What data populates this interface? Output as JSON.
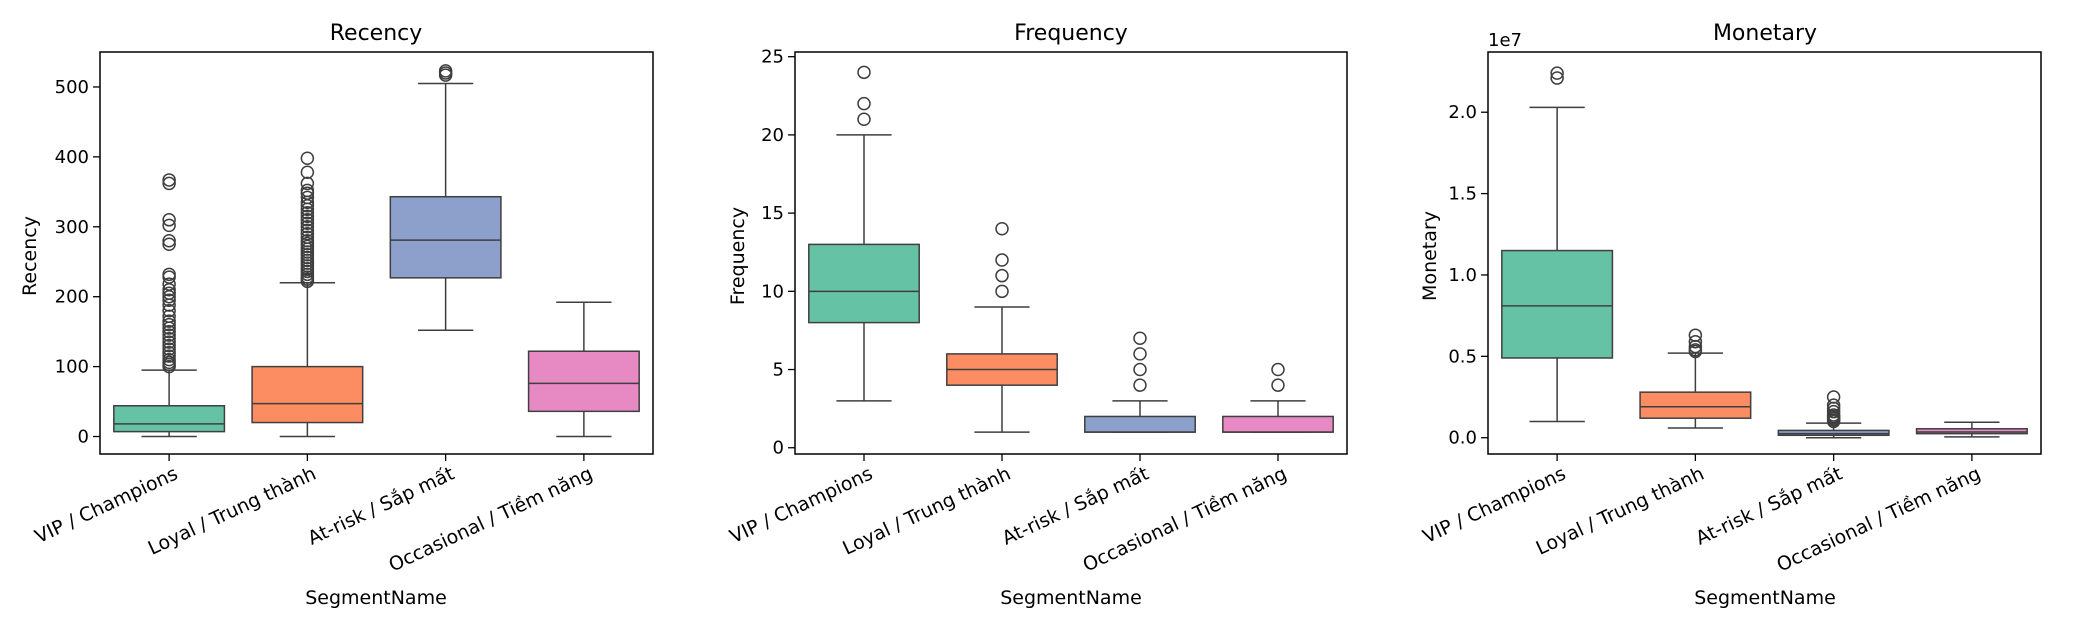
{
  "palette": [
    "#66c2a5",
    "#fc8d62",
    "#8da0cb",
    "#e78ac3"
  ],
  "edge_color": "#3f3f3f",
  "chart_data": [
    {
      "type": "box",
      "title": "Recency",
      "xlabel": "SegmentName",
      "ylabel": "Recency",
      "offset_text": "",
      "ylim": [
        -25,
        550
      ],
      "yticks": [
        0,
        100,
        200,
        300,
        400,
        500
      ],
      "ytick_labels": [
        "0",
        "100",
        "200",
        "300",
        "400",
        "500"
      ],
      "categories": [
        "VIP / Champions",
        "Loyal / Trung thành",
        "At-risk / Sắp mất",
        "Occasional / Tiềm năng"
      ],
      "boxes": [
        {
          "q1": 7,
          "median": 18,
          "q3": 44,
          "whisker_low": 0,
          "whisker_high": 95,
          "outliers": [
            100,
            103,
            106,
            110,
            115,
            120,
            125,
            130,
            135,
            140,
            145,
            150,
            155,
            160,
            165,
            172,
            180,
            188,
            195,
            200,
            205,
            210,
            218,
            228,
            232,
            275,
            280,
            302,
            310,
            362,
            367
          ]
        },
        {
          "q1": 20,
          "median": 47,
          "q3": 100,
          "whisker_low": 0,
          "whisker_high": 220,
          "outliers": [
            222,
            225,
            228,
            232,
            236,
            240,
            244,
            248,
            252,
            256,
            260,
            264,
            268,
            272,
            276,
            280,
            285,
            290,
            295,
            300,
            305,
            310,
            315,
            320,
            325,
            330,
            335,
            342,
            348,
            352,
            362,
            378,
            398
          ]
        },
        {
          "q1": 227,
          "median": 281,
          "q3": 343,
          "whisker_low": 152,
          "whisker_high": 505,
          "outliers": [
            517,
            520,
            523
          ]
        },
        {
          "q1": 36,
          "median": 76,
          "q3": 122,
          "whisker_low": 0,
          "whisker_high": 192,
          "outliers": []
        }
      ]
    },
    {
      "type": "box",
      "title": "Frequency",
      "xlabel": "SegmentName",
      "ylabel": "Frequency",
      "offset_text": "",
      "ylim": [
        -0.4,
        25.3
      ],
      "yticks": [
        0,
        5,
        10,
        15,
        20,
        25
      ],
      "ytick_labels": [
        "0",
        "5",
        "10",
        "15",
        "20",
        "25"
      ],
      "categories": [
        "VIP / Champions",
        "Loyal / Trung thành",
        "At-risk / Sắp mất",
        "Occasional / Tiềm năng"
      ],
      "boxes": [
        {
          "q1": 8,
          "median": 10,
          "q3": 13,
          "whisker_low": 3,
          "whisker_high": 20,
          "outliers": [
            21,
            22,
            24
          ]
        },
        {
          "q1": 4,
          "median": 5,
          "q3": 6,
          "whisker_low": 1,
          "whisker_high": 9,
          "outliers": [
            10,
            11,
            12,
            14
          ]
        },
        {
          "q1": 1,
          "median": 1,
          "q3": 2,
          "whisker_low": 1,
          "whisker_high": 3,
          "outliers": [
            4,
            5,
            6,
            7
          ]
        },
        {
          "q1": 1,
          "median": 1,
          "q3": 2,
          "whisker_low": 1,
          "whisker_high": 3,
          "outliers": [
            4,
            5
          ]
        }
      ]
    },
    {
      "type": "box",
      "title": "Monetary",
      "xlabel": "SegmentName",
      "ylabel": "Monetary",
      "offset_text": "1e7",
      "ylim": [
        -0.1,
        2.37
      ],
      "yticks": [
        0,
        0.5,
        1.0,
        1.5,
        2.0
      ],
      "ytick_labels": [
        "0.0",
        "0.5",
        "1.0",
        "1.5",
        "2.0"
      ],
      "categories": [
        "VIP / Champions",
        "Loyal / Trung thành",
        "At-risk / Sắp mất",
        "Occasional / Tiềm năng"
      ],
      "boxes": [
        {
          "q1": 0.49,
          "median": 0.81,
          "q3": 1.15,
          "whisker_low": 0.1,
          "whisker_high": 2.03,
          "outliers": [
            2.21,
            2.24
          ]
        },
        {
          "q1": 0.12,
          "median": 0.19,
          "q3": 0.28,
          "whisker_low": 0.06,
          "whisker_high": 0.52,
          "outliers": [
            0.53,
            0.54,
            0.56,
            0.59,
            0.63
          ]
        },
        {
          "q1": 0.015,
          "median": 0.025,
          "q3": 0.045,
          "whisker_low": 0.0,
          "whisker_high": 0.09,
          "outliers": [
            0.1,
            0.11,
            0.12,
            0.13,
            0.14,
            0.16,
            0.18,
            0.2,
            0.25
          ]
        },
        {
          "q1": 0.025,
          "median": 0.035,
          "q3": 0.055,
          "whisker_low": 0.005,
          "whisker_high": 0.095,
          "outliers": []
        }
      ]
    }
  ]
}
